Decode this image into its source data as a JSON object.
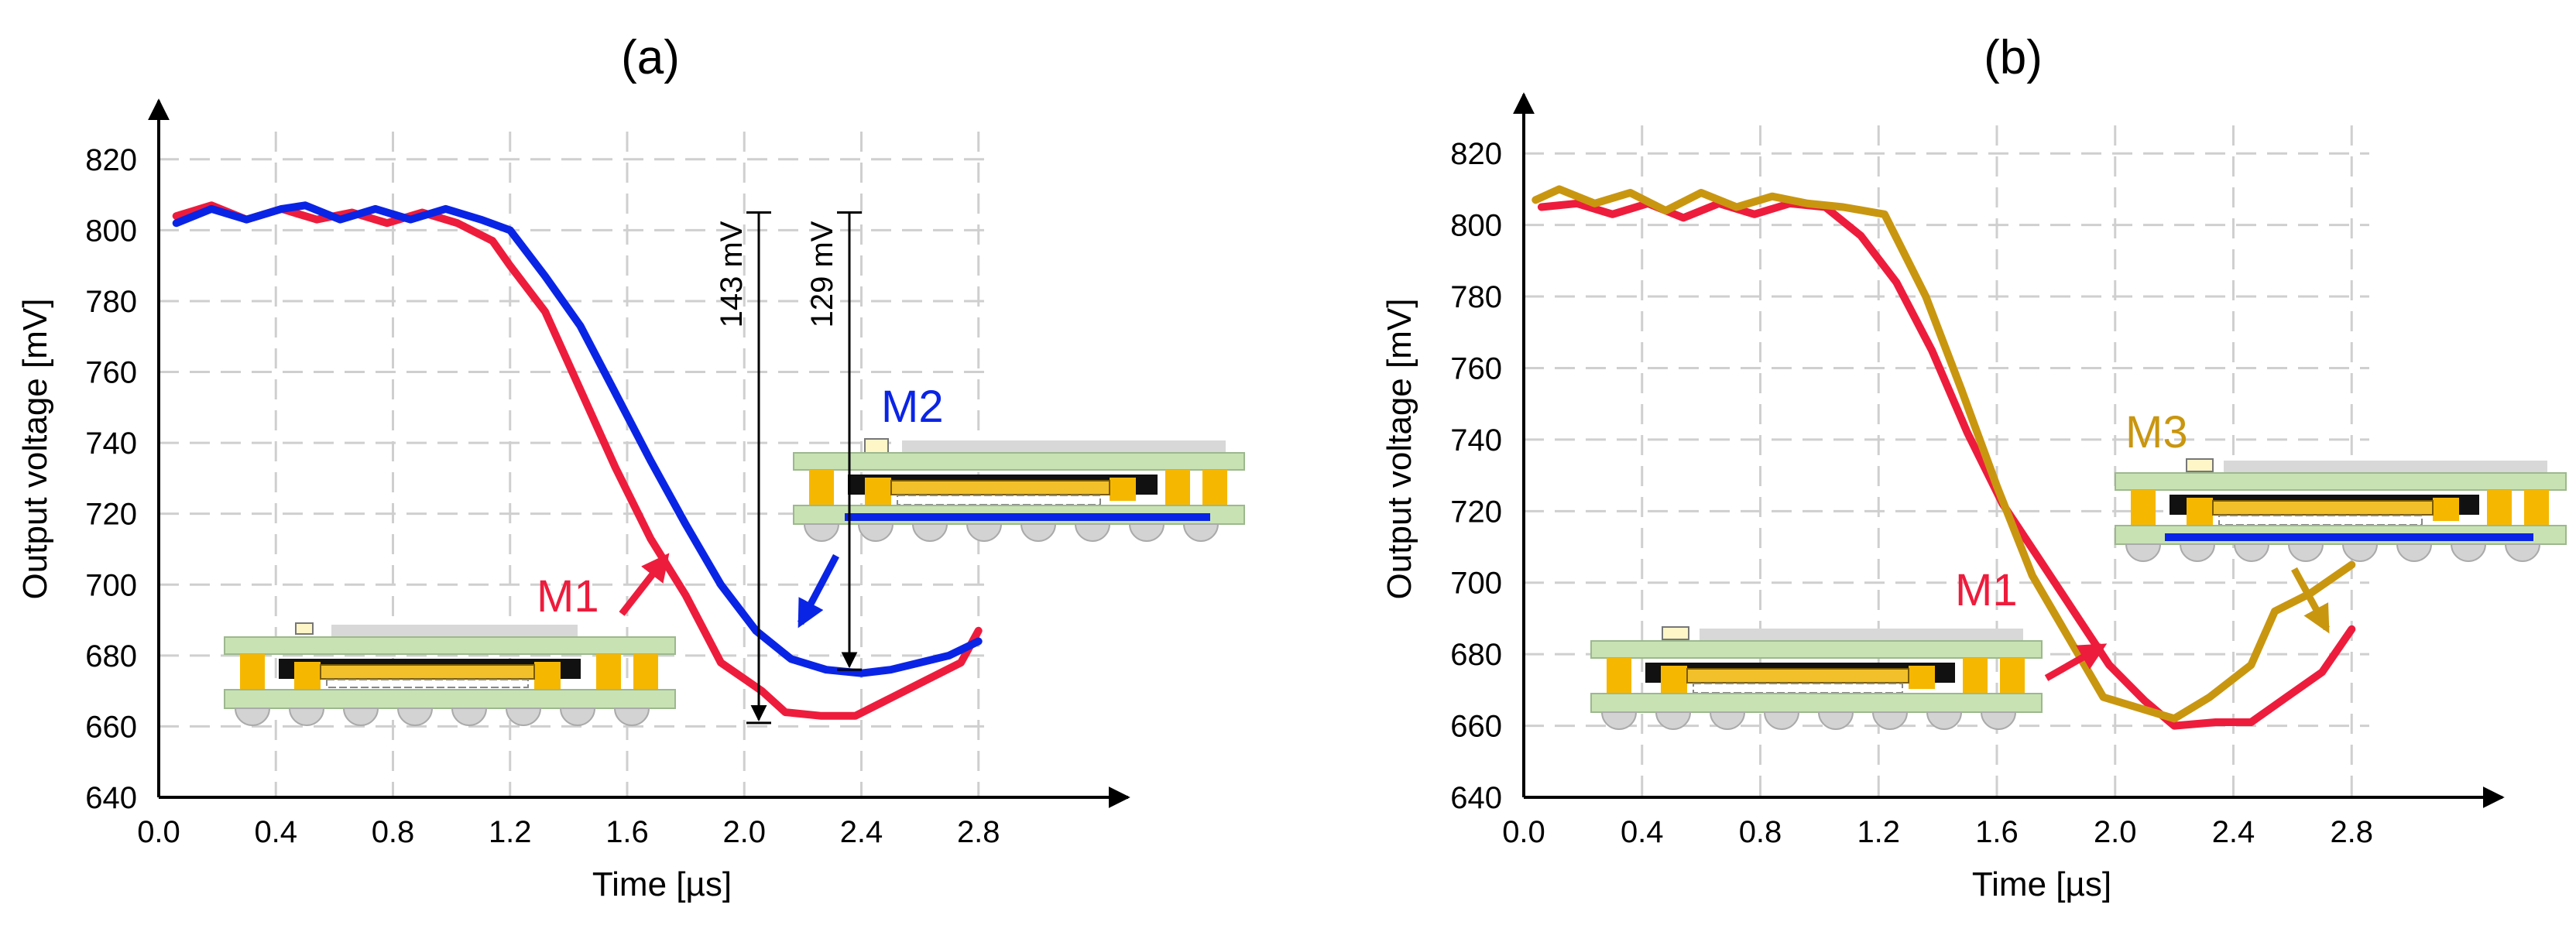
{
  "colors": {
    "M1": "#ee1c3c",
    "M2": "#0a24e6",
    "M3": "#c9960f",
    "board": "#c8e2b4",
    "pad": "#f6b700",
    "chip": "#111111",
    "die": "#f2c02a",
    "ball": "#d3d3d3",
    "lid": "#d8d8d8"
  },
  "chart_data": [
    {
      "type": "line",
      "title": "(a)",
      "xlabel": "Time [µs]",
      "ylabel": "Output voltage [mV]",
      "xlim": [
        0.0,
        3.2
      ],
      "ylim": [
        640,
        830
      ],
      "xticks": [
        0.0,
        0.4,
        0.8,
        1.2,
        1.6,
        2.0,
        2.4,
        2.8
      ],
      "xtick_labels": [
        "0.0",
        "0.4",
        "0.8",
        "1.2",
        "1.6",
        "2.0",
        "2.4",
        "2.8"
      ],
      "yticks": [
        640,
        660,
        680,
        700,
        720,
        740,
        760,
        780,
        800,
        820
      ],
      "ytick_labels": [
        "640",
        "660",
        "680",
        "700",
        "720",
        "740",
        "760",
        "780",
        "800",
        "820"
      ],
      "grid": true,
      "series": [
        {
          "name": "M1",
          "x": [
            0.06,
            0.18,
            0.3,
            0.42,
            0.54,
            0.66,
            0.78,
            0.9,
            1.02,
            1.14,
            1.2,
            1.32,
            1.44,
            1.56,
            1.68,
            1.8,
            1.92,
            2.06,
            2.14,
            2.26,
            2.38,
            2.5,
            2.62,
            2.74,
            2.8
          ],
          "y": [
            804,
            807,
            803,
            806,
            803,
            805,
            802,
            805,
            802,
            797,
            790,
            777,
            755,
            733,
            713,
            697,
            678,
            670,
            664,
            663,
            663,
            668,
            673,
            678,
            687
          ]
        },
        {
          "name": "M2",
          "x": [
            0.06,
            0.18,
            0.3,
            0.42,
            0.5,
            0.62,
            0.74,
            0.86,
            0.98,
            1.1,
            1.2,
            1.32,
            1.44,
            1.56,
            1.68,
            1.8,
            1.92,
            2.04,
            2.16,
            2.28,
            2.4,
            2.5,
            2.6,
            2.7,
            2.8
          ],
          "y": [
            802,
            806,
            803,
            806,
            807,
            803,
            806,
            803,
            806,
            803,
            800,
            787,
            773,
            754,
            735,
            717,
            700,
            687,
            679,
            676,
            675,
            676,
            678,
            680,
            684
          ]
        }
      ],
      "annotations": [
        {
          "text": "143 mV",
          "y_from": 805,
          "y_to": 661
        },
        {
          "text": "129 mV",
          "y_from": 805,
          "y_to": 676
        }
      ],
      "series_labels": [
        "M2",
        "M1"
      ]
    },
    {
      "type": "line",
      "title": "(b)",
      "xlabel": "Time [µs]",
      "ylabel": "Output voltage [mV]",
      "xlim": [
        0.0,
        3.2
      ],
      "ylim": [
        640,
        830
      ],
      "xticks": [
        0.0,
        0.4,
        0.8,
        1.2,
        1.6,
        2.0,
        2.4,
        2.8
      ],
      "xtick_labels": [
        "0.0",
        "0.4",
        "0.8",
        "1.2",
        "1.6",
        "2.0",
        "2.4",
        "2.8"
      ],
      "yticks": [
        640,
        660,
        680,
        700,
        720,
        740,
        760,
        780,
        800,
        820
      ],
      "ytick_labels": [
        "640",
        "660",
        "680",
        "700",
        "720",
        "740",
        "760",
        "780",
        "800",
        "820"
      ],
      "grid": true,
      "series": [
        {
          "name": "M1",
          "x": [
            0.06,
            0.18,
            0.3,
            0.42,
            0.54,
            0.66,
            0.78,
            0.9,
            1.02,
            1.14,
            1.26,
            1.38,
            1.5,
            1.62,
            1.74,
            1.86,
            1.98,
            2.1,
            2.2,
            2.34,
            2.46,
            2.58,
            2.7,
            2.8
          ],
          "y": [
            805,
            806,
            803,
            806,
            802,
            806,
            803,
            806,
            805,
            797,
            784,
            765,
            742,
            722,
            707,
            692,
            677,
            667,
            660,
            661,
            661,
            668,
            675,
            687
          ]
        },
        {
          "name": "M3",
          "x": [
            0.04,
            0.12,
            0.24,
            0.36,
            0.48,
            0.6,
            0.72,
            0.84,
            0.96,
            1.08,
            1.22,
            1.36,
            1.48,
            1.6,
            1.72,
            1.84,
            1.96,
            2.08,
            2.2,
            2.32,
            2.46,
            2.54,
            2.66,
            2.8
          ],
          "y": [
            807,
            810,
            806,
            809,
            804,
            809,
            805,
            808,
            806,
            805,
            803,
            780,
            754,
            727,
            702,
            685,
            668,
            665,
            662,
            668,
            677,
            692,
            697,
            705
          ]
        }
      ],
      "series_labels": [
        "M3",
        "M1"
      ]
    }
  ]
}
